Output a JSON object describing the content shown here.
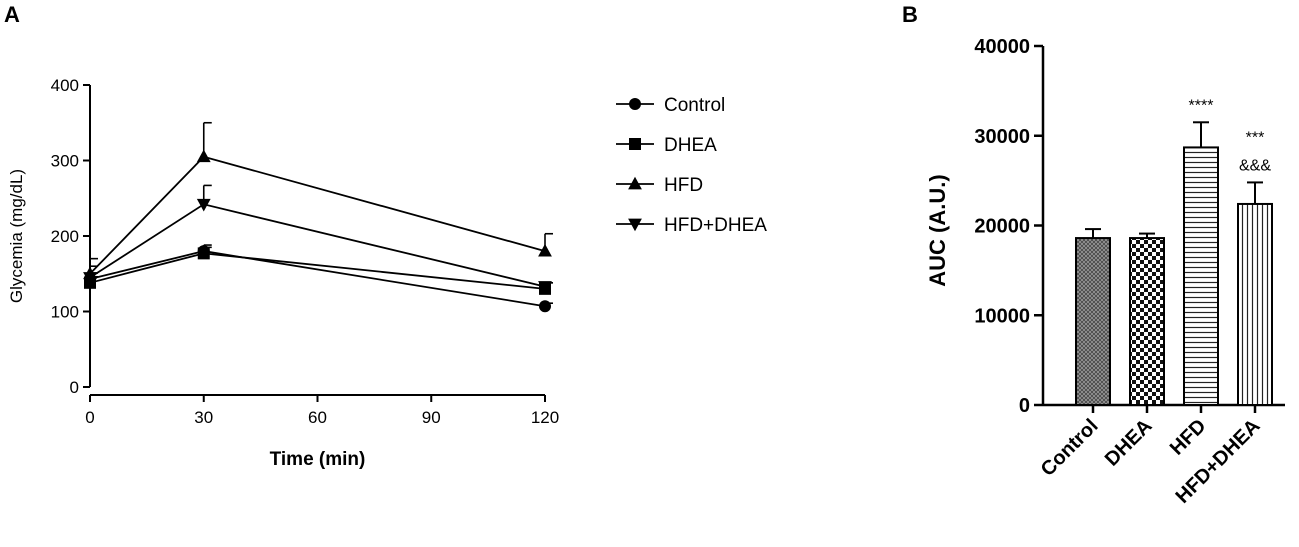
{
  "panels": {
    "a": {
      "letter": "A"
    },
    "b": {
      "letter": "B"
    }
  },
  "chart_data": [
    {
      "type": "line",
      "xlabel": "Time (min)",
      "ylabel": "Glycemia (mg/dL)",
      "x": [
        0,
        30,
        120
      ],
      "xticks": [
        0,
        30,
        60,
        90,
        120
      ],
      "yticks": [
        0,
        100,
        200,
        300,
        400
      ],
      "xlim": [
        0,
        120
      ],
      "ylim": [
        0,
        400
      ],
      "legend_position": "right",
      "series": [
        {
          "name": "Control",
          "marker": "circle",
          "values": [
            143,
            180,
            107
          ],
          "errors": [
            8,
            8,
            4
          ]
        },
        {
          "name": "DHEA",
          "marker": "square",
          "values": [
            138,
            177,
            130
          ],
          "errors": [
            8,
            8,
            8
          ]
        },
        {
          "name": "HFD",
          "marker": "triangle-up",
          "values": [
            150,
            305,
            180
          ],
          "errors": [
            10,
            45,
            23
          ]
        },
        {
          "name": "HFD+DHEA",
          "marker": "triangle-down",
          "values": [
            145,
            242,
            133
          ],
          "errors": [
            25,
            25,
            5
          ]
        }
      ]
    },
    {
      "type": "bar",
      "ylabel": "AUC (A.U.)",
      "categories": [
        "Control",
        "DHEA",
        "HFD",
        "HFD+DHEA"
      ],
      "values": [
        18600,
        18600,
        28700,
        22400
      ],
      "errors": [
        1000,
        500,
        2800,
        2400
      ],
      "patterns": [
        "crosshatch",
        "checker",
        "horizontal-stripes",
        "vertical-stripes"
      ],
      "yticks": [
        0,
        10000,
        20000,
        30000,
        40000
      ],
      "ylim": [
        0,
        40000
      ],
      "annotations": [
        {
          "category": "HFD",
          "lines": [
            "****"
          ]
        },
        {
          "category": "HFD+DHEA",
          "lines": [
            "***",
            "&&&"
          ]
        }
      ]
    }
  ]
}
